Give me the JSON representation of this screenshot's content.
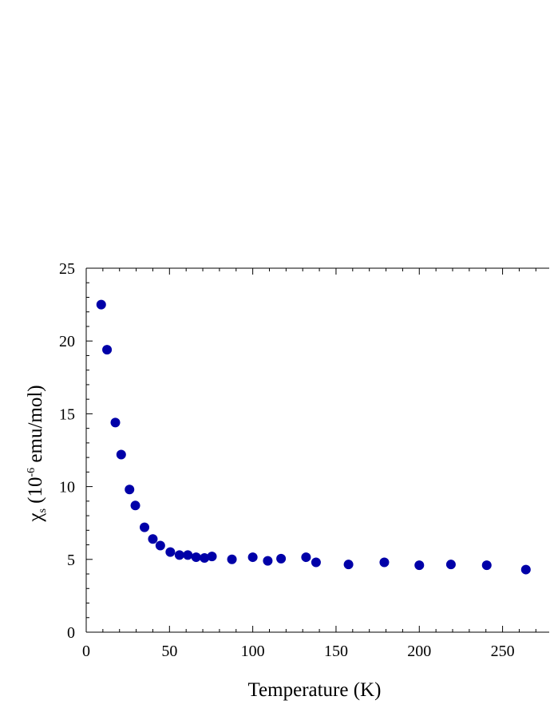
{
  "chart_data": {
    "type": "scatter",
    "title": "",
    "xlabel": "Temperature (K)",
    "ylabel": {
      "chi": "χ",
      "sub": "s",
      "prefix": " (10",
      "sup": "-6",
      "suffix": " emu/mol)"
    },
    "xlim": [
      0,
      278
    ],
    "ylim": [
      0,
      25
    ],
    "x_ticks": [
      0,
      50,
      100,
      150,
      200,
      250
    ],
    "y_ticks": [
      0,
      5,
      10,
      15,
      20,
      25
    ],
    "grid": false,
    "legend": "none",
    "marker_color": "#0000a8",
    "series": [
      {
        "x": [
          9,
          12.5,
          17.5,
          21,
          26,
          29.5,
          35,
          40,
          44.5,
          50.5,
          56,
          61,
          66,
          71,
          75.5,
          87.5,
          100,
          109,
          117,
          132,
          138,
          157.5,
          179,
          200,
          219,
          240.5,
          264
        ],
        "y": [
          22.5,
          19.4,
          14.4,
          12.2,
          9.8,
          8.7,
          7.2,
          6.4,
          5.95,
          5.5,
          5.3,
          5.3,
          5.15,
          5.1,
          5.2,
          5.0,
          5.15,
          4.9,
          5.05,
          5.15,
          4.8,
          4.65,
          4.8,
          4.6,
          4.65,
          4.6,
          4.3
        ]
      }
    ]
  }
}
